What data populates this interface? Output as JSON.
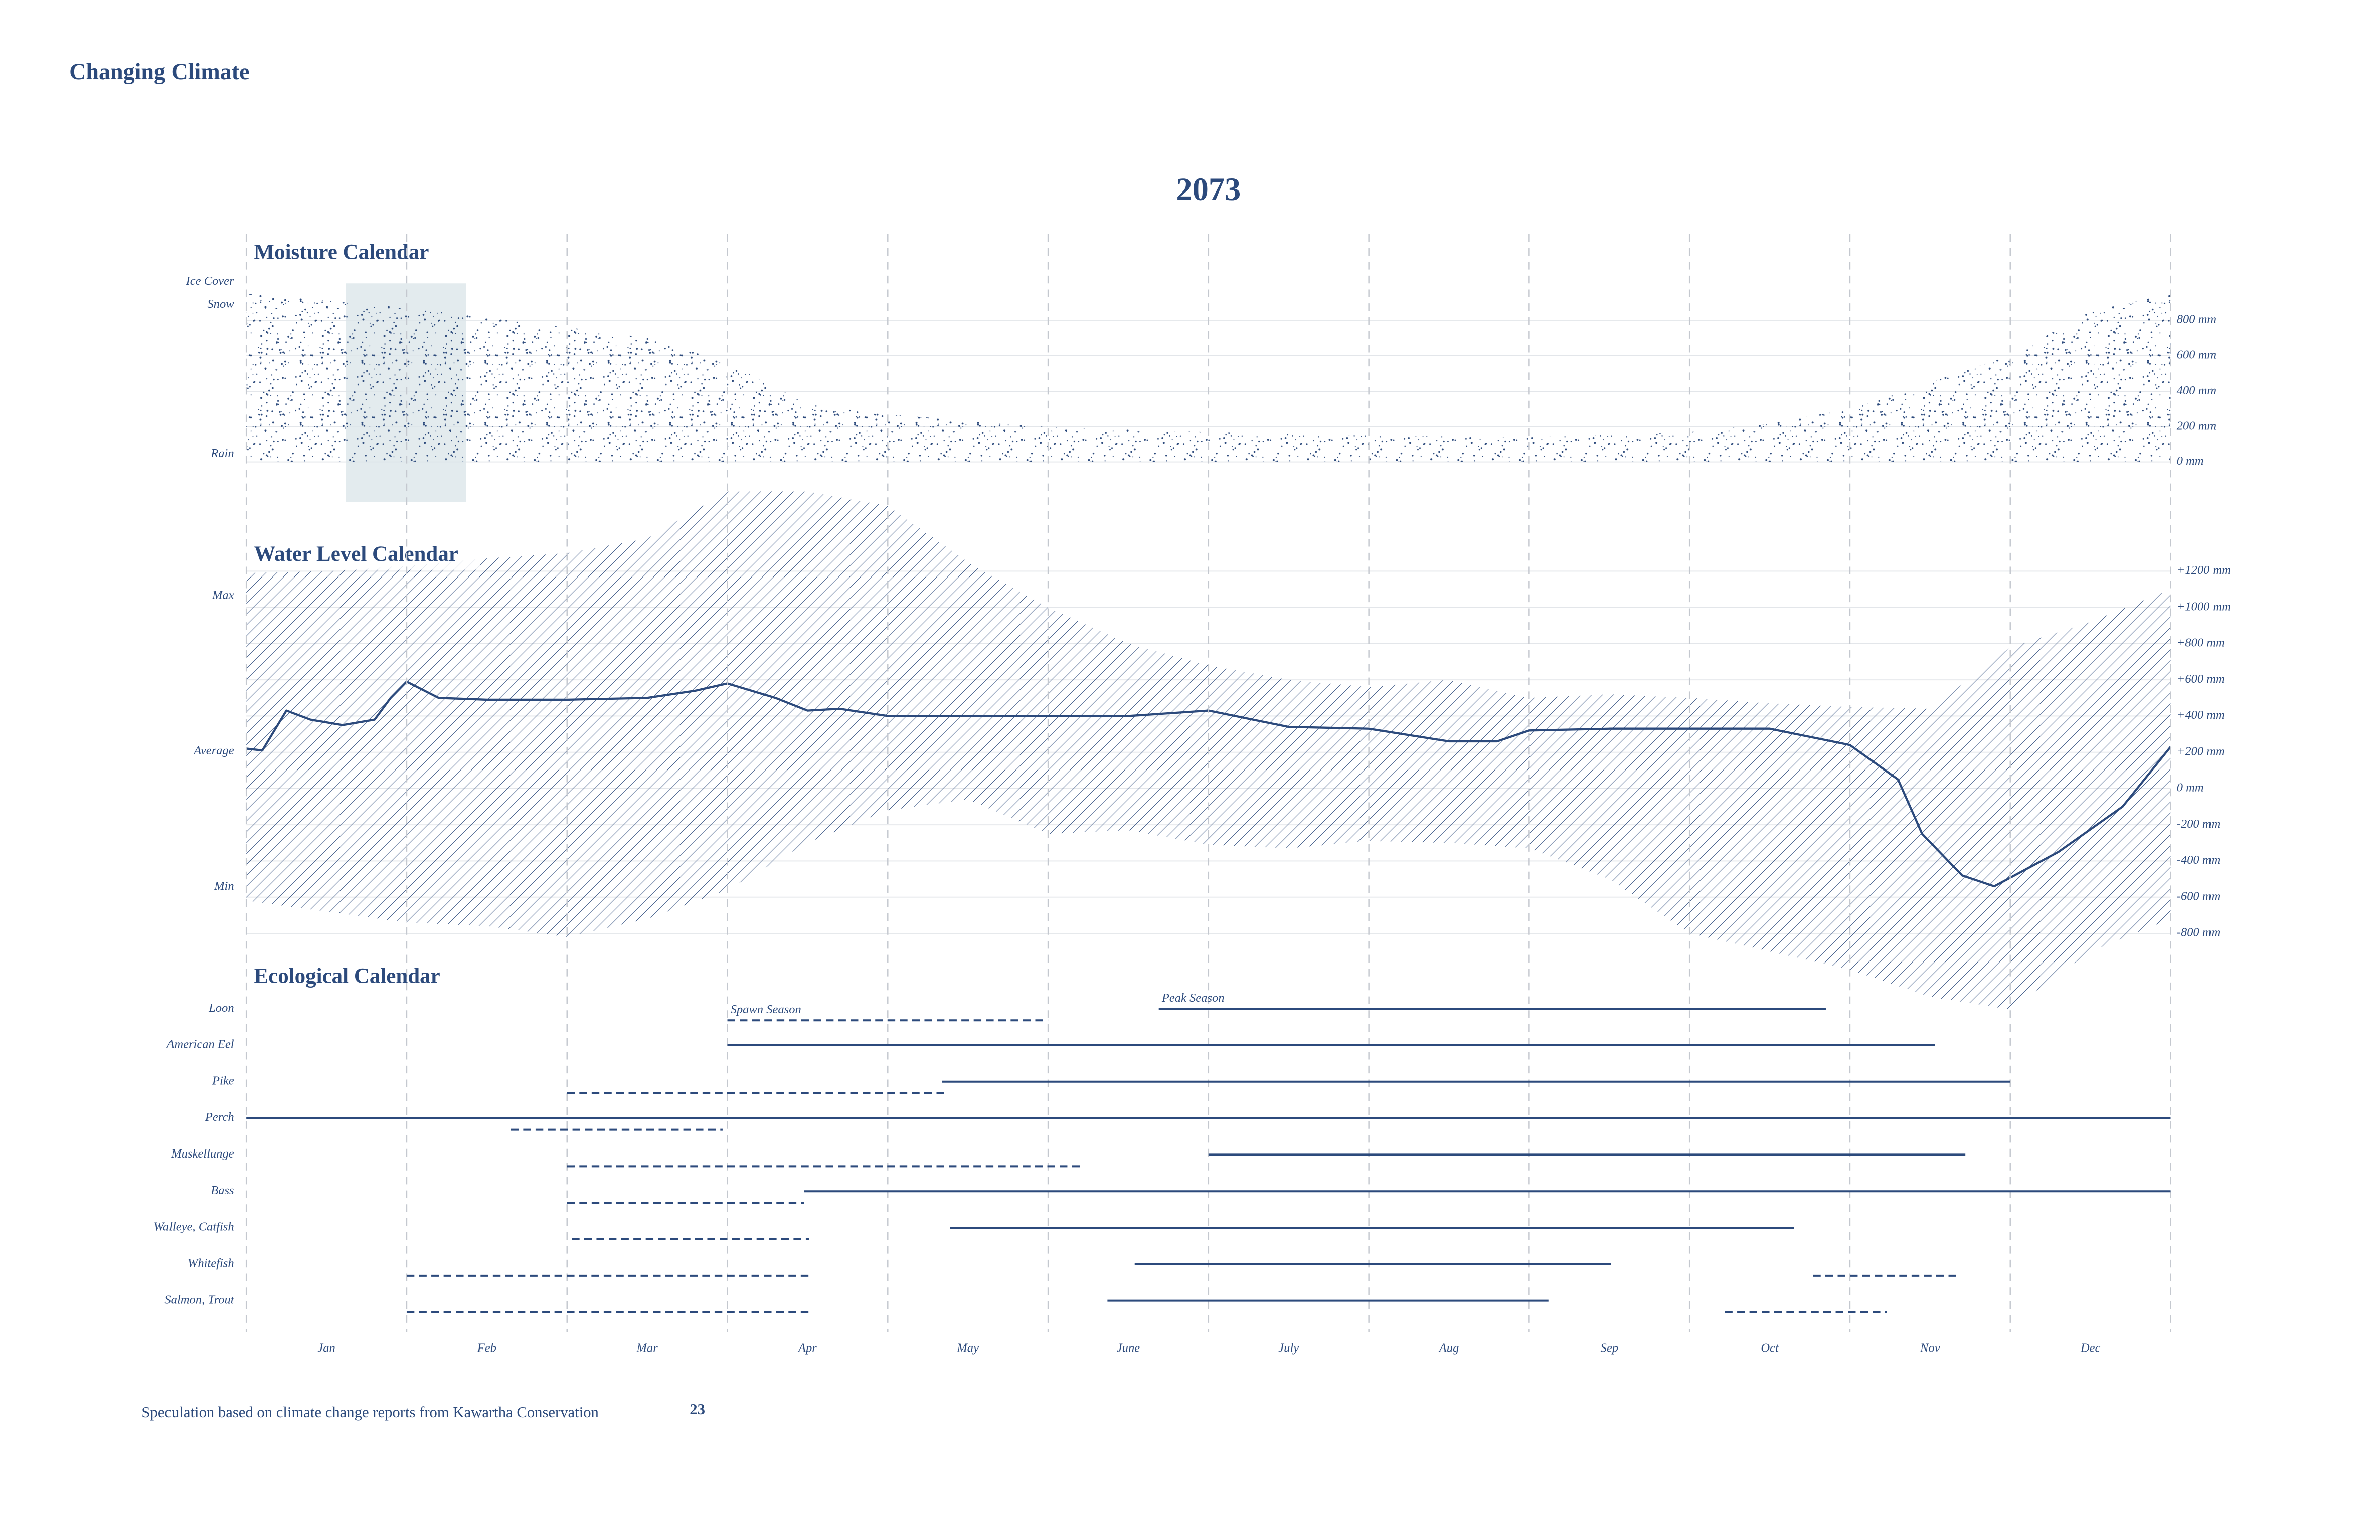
{
  "header": {
    "title": "Changing Climate",
    "year": "2073"
  },
  "chart_data": [
    {
      "type": "area",
      "title": "Moisture Calendar",
      "annotations": [
        "Ice Cover",
        "Snow",
        "Rain"
      ],
      "xlim": [
        0,
        12
      ],
      "ylim": [
        0,
        1000
      ],
      "yticks": [
        {
          "value": 0,
          "label": "0 mm"
        },
        {
          "value": 200,
          "label": "200 mm"
        },
        {
          "value": 400,
          "label": "400 mm"
        },
        {
          "value": 600,
          "label": "600 mm"
        },
        {
          "value": 800,
          "label": "800 mm"
        }
      ],
      "x": [
        0,
        1,
        2,
        2.5,
        3,
        3.5,
        4,
        5,
        6,
        7,
        8,
        9,
        9.5,
        10,
        10.5,
        11,
        11.5,
        12
      ],
      "values": [
        950,
        870,
        760,
        700,
        560,
        330,
        270,
        200,
        170,
        150,
        140,
        170,
        220,
        300,
        450,
        600,
        850,
        950
      ],
      "highlight": {
        "start": 0.62,
        "end": 1.37
      },
      "color": "#2c4a7c",
      "grid": true
    },
    {
      "type": "band",
      "title": "Water Level Calendar",
      "annotations": [
        "Max",
        "Average",
        "Min"
      ],
      "xlim": [
        0,
        12
      ],
      "ylim": [
        -1250,
        1650
      ],
      "yticks": [
        {
          "value": 1200,
          "label": "+1200 mm"
        },
        {
          "value": 1000,
          "label": "+1000 mm"
        },
        {
          "value": 800,
          "label": "+800 mm"
        },
        {
          "value": 600,
          "label": "+600 mm"
        },
        {
          "value": 400,
          "label": "+400 mm"
        },
        {
          "value": 200,
          "label": "+200 mm"
        },
        {
          "value": 0,
          "label": "0 mm"
        },
        {
          "value": -200,
          "label": "-200 mm"
        },
        {
          "value": -400,
          "label": "-400 mm"
        },
        {
          "value": -600,
          "label": "-600 mm"
        },
        {
          "value": -800,
          "label": "-800 mm"
        }
      ],
      "band": {
        "x": [
          0,
          0.5,
          1,
          1.5,
          2,
          2.5,
          3,
          3.5,
          4,
          4.5,
          5,
          5.5,
          6,
          6.5,
          7,
          7.5,
          8,
          8.5,
          9,
          9.5,
          10,
          10.5,
          11,
          11.5,
          12
        ],
        "max": [
          1190,
          1200,
          1230,
          1270,
          1300,
          1380,
          1640,
          1640,
          1560,
          1250,
          1000,
          800,
          680,
          600,
          560,
          600,
          500,
          520,
          500,
          470,
          450,
          440,
          780,
          920,
          1100
        ],
        "min": [
          -620,
          -680,
          -740,
          -760,
          -820,
          -720,
          -560,
          -300,
          -120,
          -60,
          -250,
          -230,
          -310,
          -330,
          -290,
          -300,
          -330,
          -500,
          -800,
          -900,
          -1000,
          -1150,
          -1220,
          -900,
          -720
        ]
      },
      "line": {
        "x": [
          0,
          0.1,
          0.25,
          0.4,
          0.6,
          0.8,
          0.9,
          1,
          1.2,
          1.5,
          2,
          2.5,
          2.8,
          3,
          3.3,
          3.5,
          3.7,
          4,
          4.5,
          5,
          5.5,
          6,
          6.5,
          7,
          7.5,
          7.8,
          8,
          8.5,
          9,
          9.5,
          10,
          10.3,
          10.45,
          10.7,
          10.9,
          11.3,
          11.7,
          12
        ],
        "values": [
          220,
          210,
          430,
          380,
          350,
          380,
          500,
          590,
          500,
          490,
          490,
          500,
          540,
          580,
          500,
          430,
          440,
          400,
          400,
          400,
          400,
          430,
          340,
          330,
          260,
          260,
          320,
          330,
          330,
          330,
          240,
          50,
          -250,
          -480,
          -540,
          -350,
          -100,
          230
        ]
      },
      "color": "#2c4a7c",
      "grid": true
    },
    {
      "type": "gantt",
      "title": "Ecological Calendar",
      "categories": [
        "Jan",
        "Feb",
        "Mar",
        "Apr",
        "May",
        "June",
        "July",
        "Aug",
        "Sep",
        "Oct",
        "Nov",
        "Dec"
      ],
      "xlim": [
        0,
        12
      ],
      "color": "#2c4a7c",
      "rows": [
        {
          "name": "Loon",
          "periods": [
            {
              "start": 3.0,
              "end": 5.0,
              "style": "dashed",
              "label": "Spawn Season"
            },
            {
              "start": 5.69,
              "end": 9.85,
              "style": "solid",
              "label": "Peak Season"
            }
          ]
        },
        {
          "name": "American Eel",
          "periods": [
            {
              "start": 3.0,
              "end": 10.53,
              "style": "solid"
            }
          ]
        },
        {
          "name": "Pike",
          "periods": [
            {
              "start": 2.0,
              "end": 4.35,
              "style": "dashed"
            },
            {
              "start": 4.34,
              "end": 11.0,
              "style": "solid"
            }
          ]
        },
        {
          "name": "Perch",
          "periods": [
            {
              "start": 0,
              "end": 12,
              "style": "solid"
            },
            {
              "start": 1.65,
              "end": 2.97,
              "style": "dashed"
            }
          ]
        },
        {
          "name": "Muskellunge",
          "periods": [
            {
              "start": 2.0,
              "end": 5.22,
              "style": "dashed"
            },
            {
              "start": 6.0,
              "end": 10.72,
              "style": "solid"
            }
          ]
        },
        {
          "name": "Bass",
          "periods": [
            {
              "start": 2.0,
              "end": 3.48,
              "style": "dashed"
            },
            {
              "start": 3.48,
              "end": 12,
              "style": "solid"
            }
          ]
        },
        {
          "name": "Walleye, Catfish",
          "periods": [
            {
              "start": 2.03,
              "end": 3.51,
              "style": "dashed"
            },
            {
              "start": 4.39,
              "end": 9.65,
              "style": "solid"
            }
          ]
        },
        {
          "name": "Whitefish",
          "periods": [
            {
              "start": 1.0,
              "end": 3.51,
              "style": "dashed"
            },
            {
              "start": 5.54,
              "end": 8.51,
              "style": "solid"
            },
            {
              "start": 9.77,
              "end": 10.69,
              "style": "dashed"
            }
          ]
        },
        {
          "name": "Salmon, Trout",
          "periods": [
            {
              "start": 1.0,
              "end": 3.51,
              "style": "dashed"
            },
            {
              "start": 5.37,
              "end": 8.12,
              "style": "solid"
            },
            {
              "start": 9.22,
              "end": 10.23,
              "style": "dashed"
            }
          ]
        }
      ]
    }
  ],
  "footer": {
    "note": "Speculation based on climate change reports from Kawartha Conservation",
    "page": 23
  }
}
